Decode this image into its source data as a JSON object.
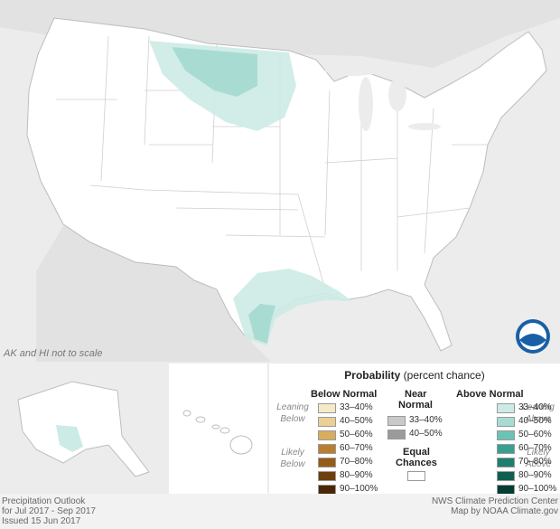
{
  "map": {
    "scale_note": "AK and HI not to scale",
    "colors": {
      "water": "#ececec",
      "land": "#ffffff",
      "border": "#bbbbbb",
      "above_33_40": "#cdebe6",
      "above_40_50": "#a8dcd3"
    },
    "above_normal_areas": [
      {
        "region": "Northern Plains (Montana, Dakotas)",
        "category": "33–40%"
      },
      {
        "region": "North Dakota center",
        "category": "40–50%"
      },
      {
        "region": "Texas Gulf Coast / Louisiana",
        "category": "33–40%"
      },
      {
        "region": "South Texas coast",
        "category": "40–50%"
      },
      {
        "region": "Southeast Alaska",
        "category": "33–40%"
      }
    ],
    "logo_text": "NOAA"
  },
  "legend": {
    "title": "Probability",
    "title_sub": "(percent chance)",
    "below_header": "Below Normal",
    "near_header_1": "Near",
    "near_header_2": "Normal",
    "above_header": "Above Normal",
    "leaning_below_1": "Leaning",
    "leaning_below_2": "Below",
    "likely_below_1": "Likely",
    "likely_below_2": "Below",
    "leaning_above_1": "Leaning",
    "leaning_above_2": "Above",
    "likely_above_1": "Likely",
    "likely_above_2": "Above",
    "equal_1": "Equal",
    "equal_2": "Chances",
    "below": [
      {
        "label": "33–40%",
        "color": "#f6e9c8"
      },
      {
        "label": "40–50%",
        "color": "#eccf95"
      },
      {
        "label": "50–60%",
        "color": "#d8ad5c"
      },
      {
        "label": "60–70%",
        "color": "#b97f2f"
      },
      {
        "label": "70–80%",
        "color": "#955c17"
      },
      {
        "label": "80–90%",
        "color": "#6e3e0c"
      },
      {
        "label": "90–100%",
        "color": "#4a2807"
      }
    ],
    "near": [
      {
        "label": "33–40%",
        "color": "#c9c9c9"
      },
      {
        "label": "40–50%",
        "color": "#9b9b9b"
      }
    ],
    "above": [
      {
        "label": "33–40%",
        "color": "#cdebe6"
      },
      {
        "label": "40–50%",
        "color": "#a8dcd3"
      },
      {
        "label": "50–60%",
        "color": "#6cc3b4"
      },
      {
        "label": "60–70%",
        "color": "#37a090"
      },
      {
        "label": "70–80%",
        "color": "#1f7f6e"
      },
      {
        "label": "80–90%",
        "color": "#0e5f50"
      },
      {
        "label": "90–100%",
        "color": "#053d33"
      }
    ],
    "equal_color": "#ffffff"
  },
  "footer": {
    "line1": "Precipitation Outlook",
    "line2": "for Jul 2017 - Sep 2017",
    "line3": "Issued 15 Jun 2017",
    "credit1": "NWS Climate Prediction Center",
    "credit2": "Map by NOAA Climate.gov"
  }
}
